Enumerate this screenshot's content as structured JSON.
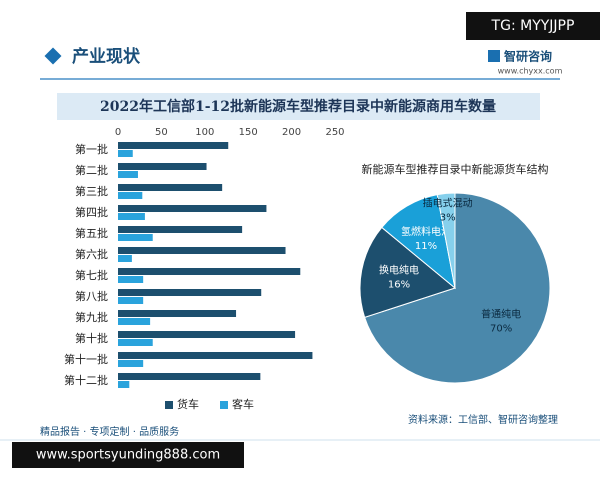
{
  "header": {
    "section": "产业现状",
    "tag": "TG: MYYJJPP",
    "logo": "智研咨询",
    "url": "www.chyxx.com"
  },
  "chart_data": [
    {
      "type": "barh",
      "title": "2022年工信部1-12批新能源车型推荐目录中新能源商用车数量",
      "categories": [
        "第一批",
        "第二批",
        "第三批",
        "第四批",
        "第五批",
        "第六批",
        "第七批",
        "第八批",
        "第九批",
        "第十批",
        "第十一批",
        "第十二批"
      ],
      "series": [
        {
          "name": "货车",
          "color": "#1d4f6e",
          "values": [
            127,
            102,
            120,
            171,
            143,
            193,
            210,
            165,
            136,
            204,
            224,
            164
          ]
        },
        {
          "name": "客车",
          "color": "#2aa3dc",
          "values": [
            17,
            23,
            28,
            31,
            40,
            16,
            29,
            29,
            37,
            40,
            29,
            13
          ]
        }
      ],
      "xlim": [
        0,
        250
      ],
      "xticks": [
        0,
        50,
        100,
        150,
        200,
        250
      ],
      "grid": false,
      "legend": "bottom"
    },
    {
      "type": "pie",
      "title": "新能源车型推荐目录中新能源货车结构",
      "categories": [
        "普通纯电",
        "换电纯电",
        "氢燃料电池",
        "插电式混动"
      ],
      "values": [
        70,
        16,
        11,
        3
      ],
      "value_labels": [
        "70%",
        "16%",
        "11%",
        "3%"
      ],
      "colors": [
        "#4a88ab",
        "#1d4f6e",
        "#1aa0d8",
        "#86d0ec"
      ]
    }
  ],
  "footer": {
    "slogan": "精品报告 · 专项定制 · 品质服务",
    "source": "资料来源：工信部、智研咨询整理",
    "watermark": "www.sportsyunding888.com"
  }
}
